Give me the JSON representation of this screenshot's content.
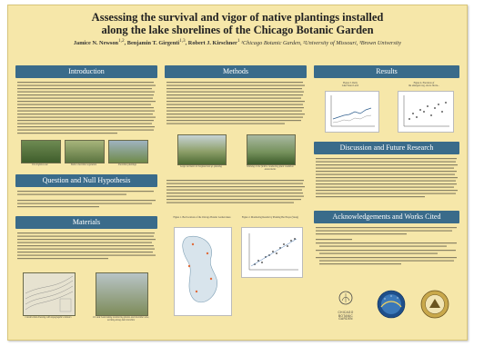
{
  "poster": {
    "title_line1": "Assessing the survival and vigor of native plantings installed",
    "title_line2": "along the lake shorelines of the Chicago Botanic Garden",
    "authors": "Jamice N. Newson",
    "authors_sup": "1,2",
    "authors_2": ", Benjamin T. Girgenti",
    "authors_2_sup": "1,3",
    "authors_3": ", Robert J. Kirschner",
    "authors_3_sup": "1",
    "affiliations": " ¹Chicago Botanic Garden, ²University of Missouri, ³Brown University"
  },
  "sections": {
    "introduction": "Introduction",
    "methods": "Methods",
    "results": "Results",
    "question": "Question and Null Hypothesis",
    "materials": "Materials",
    "discussion": "Discussion and Future Research",
    "acknowledgements": "Acknowledgements and Works Cited"
  },
  "captions": {
    "photo1": "Iris virginica var.",
    "photo2": "Native shoreline vegetation",
    "photo3": "Shoreline plantings",
    "photo4": "Large meristem in Sorghastrum sp. planting",
    "photo5": "Working in the field is conducting plant condition assessments",
    "photo6": "Construction drawing with topographic contours",
    "photo7": "Dr. and I and taking monitoring photos and shoreline view, working along lake shoreline",
    "fig1": "Figure 1. Bed locations of the Chicago Botanic Garden lakes",
    "fig2": "Figure 2. Monitoring Results by Planting Bed Slope (Steep)"
  },
  "results_charts": {
    "fig_a_title_line1": "Figure 3. Daily",
    "fig_a_title_line2": "Lake Water Level",
    "fig_b_title_line1": "Figure 4. Elevation of",
    "fig_b_title_line2": "the emergent veg. above fluctu..."
  },
  "logos": {
    "cbg_line1": "CHICAGO",
    "cbg_line2": "BOTANIC",
    "cbg_line3": "GARDEN"
  },
  "colors": {
    "background": "#f6e7a9",
    "header": "#3a6b8a"
  }
}
